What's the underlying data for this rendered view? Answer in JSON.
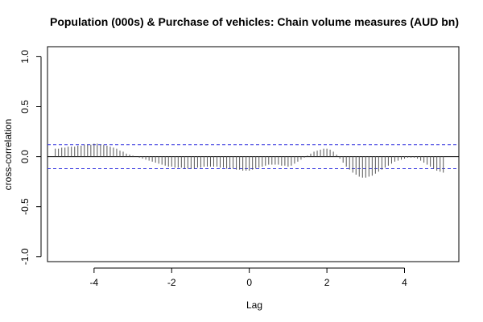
{
  "chart_data": {
    "type": "bar",
    "title": "Population (000s) & Purchase of vehicles: Chain volume measures (AUD bn)",
    "xlabel": "Lag",
    "ylabel": "cross-correlation",
    "xlim": [
      -5.2,
      5.4
    ],
    "ylim": [
      -1.05,
      1.1
    ],
    "x_ticks": [
      -4,
      -2,
      0,
      2,
      4
    ],
    "y_ticks": [
      -1.0,
      -0.5,
      0.0,
      0.5,
      1.0
    ],
    "y_tick_labels": [
      "-1.0",
      "-0.5",
      "0.0",
      "0.5",
      "1.0"
    ],
    "ci_bounds": [
      0.12,
      -0.12
    ],
    "colors": {
      "bars": "#555555",
      "zero_line": "#000000",
      "ci_lines": "#3a3ae0",
      "box": "#000000"
    },
    "x": [
      -5.0,
      -4.917,
      -4.833,
      -4.75,
      -4.667,
      -4.583,
      -4.5,
      -4.417,
      -4.333,
      -4.25,
      -4.167,
      -4.083,
      -4.0,
      -3.917,
      -3.833,
      -3.75,
      -3.667,
      -3.583,
      -3.5,
      -3.417,
      -3.333,
      -3.25,
      -3.167,
      -3.083,
      -3.0,
      -2.917,
      -2.833,
      -2.75,
      -2.667,
      -2.583,
      -2.5,
      -2.417,
      -2.333,
      -2.25,
      -2.167,
      -2.083,
      -2.0,
      -1.917,
      -1.833,
      -1.75,
      -1.667,
      -1.583,
      -1.5,
      -1.417,
      -1.333,
      -1.25,
      -1.167,
      -1.083,
      -1.0,
      -0.917,
      -0.833,
      -0.75,
      -0.667,
      -0.583,
      -0.5,
      -0.417,
      -0.333,
      -0.25,
      -0.167,
      -0.083,
      0.0,
      0.083,
      0.167,
      0.25,
      0.333,
      0.417,
      0.5,
      0.583,
      0.667,
      0.75,
      0.833,
      0.917,
      1.0,
      1.083,
      1.167,
      1.25,
      1.333,
      1.417,
      1.5,
      1.583,
      1.667,
      1.75,
      1.833,
      1.917,
      2.0,
      2.083,
      2.167,
      2.25,
      2.333,
      2.417,
      2.5,
      2.583,
      2.667,
      2.75,
      2.833,
      2.917,
      3.0,
      3.083,
      3.167,
      3.25,
      3.333,
      3.417,
      3.5,
      3.583,
      3.667,
      3.75,
      3.833,
      3.917,
      4.0,
      4.083,
      4.167,
      4.25,
      4.333,
      4.417,
      4.5,
      4.583,
      4.667,
      4.75,
      4.833,
      4.917,
      5.0
    ],
    "values": [
      0.08,
      0.08,
      0.09,
      0.09,
      0.1,
      0.1,
      0.1,
      0.11,
      0.11,
      0.12,
      0.12,
      0.12,
      0.13,
      0.13,
      0.12,
      0.12,
      0.11,
      0.1,
      0.09,
      0.08,
      0.06,
      0.05,
      0.03,
      0.02,
      0.01,
      0.0,
      -0.01,
      -0.02,
      -0.03,
      -0.04,
      -0.05,
      -0.06,
      -0.07,
      -0.08,
      -0.09,
      -0.1,
      -0.1,
      -0.11,
      -0.11,
      -0.11,
      -0.12,
      -0.12,
      -0.12,
      -0.12,
      -0.11,
      -0.11,
      -0.1,
      -0.1,
      -0.1,
      -0.1,
      -0.1,
      -0.11,
      -0.11,
      -0.12,
      -0.12,
      -0.12,
      -0.13,
      -0.13,
      -0.14,
      -0.14,
      -0.14,
      -0.13,
      -0.12,
      -0.11,
      -0.1,
      -0.09,
      -0.08,
      -0.08,
      -0.08,
      -0.08,
      -0.09,
      -0.09,
      -0.1,
      -0.09,
      -0.07,
      -0.05,
      -0.03,
      -0.01,
      0.01,
      0.03,
      0.05,
      0.06,
      0.07,
      0.08,
      0.08,
      0.07,
      0.05,
      0.02,
      -0.02,
      -0.06,
      -0.1,
      -0.13,
      -0.16,
      -0.18,
      -0.2,
      -0.21,
      -0.21,
      -0.2,
      -0.19,
      -0.17,
      -0.15,
      -0.13,
      -0.11,
      -0.09,
      -0.07,
      -0.05,
      -0.04,
      -0.03,
      -0.02,
      -0.01,
      -0.01,
      -0.01,
      -0.02,
      -0.04,
      -0.06,
      -0.08,
      -0.1,
      -0.12,
      -0.14,
      -0.15,
      -0.16
    ]
  }
}
